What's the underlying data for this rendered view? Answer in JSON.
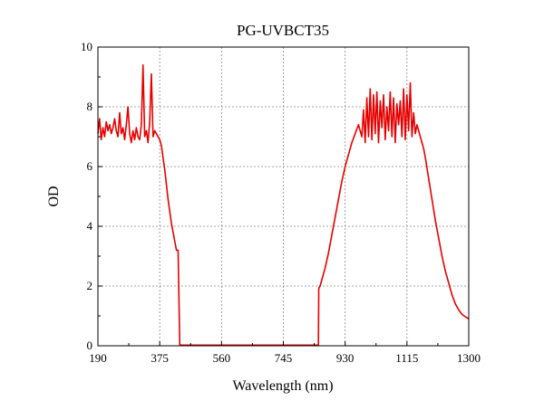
{
  "chart_data": {
    "type": "line",
    "title": "PG-UVBCT35",
    "xlabel": "Wavelength (nm)",
    "ylabel": "OD",
    "xlim": [
      190,
      1300
    ],
    "ylim": [
      0,
      10
    ],
    "x_ticks": [
      "190",
      "375",
      "560",
      "745",
      "930",
      "1115",
      "1300"
    ],
    "y_ticks": [
      "0",
      "2",
      "4",
      "6",
      "8",
      "10"
    ],
    "grid": true,
    "legend": "none",
    "series": [
      {
        "color": "#e60000",
        "x": [
          190,
          195,
          200,
          205,
          210,
          215,
          220,
          225,
          230,
          235,
          240,
          245,
          250,
          255,
          260,
          265,
          270,
          275,
          280,
          285,
          290,
          295,
          300,
          305,
          310,
          315,
          320,
          325,
          330,
          335,
          340,
          345,
          350,
          355,
          360,
          365,
          370,
          375,
          380,
          385,
          390,
          395,
          400,
          405,
          410,
          415,
          420,
          425,
          430,
          435,
          440,
          445,
          447,
          448,
          450,
          460,
          480,
          500,
          520,
          540,
          560,
          580,
          600,
          620,
          640,
          660,
          680,
          700,
          720,
          740,
          760,
          780,
          800,
          820,
          840,
          850,
          851,
          852,
          855,
          860,
          870,
          880,
          890,
          900,
          910,
          920,
          930,
          940,
          950,
          960,
          970,
          980,
          985,
          990,
          995,
          1000,
          1005,
          1010,
          1015,
          1020,
          1025,
          1030,
          1035,
          1040,
          1045,
          1050,
          1055,
          1060,
          1065,
          1070,
          1075,
          1080,
          1085,
          1090,
          1095,
          1100,
          1105,
          1110,
          1115,
          1120,
          1125,
          1130,
          1135,
          1140,
          1145,
          1150,
          1155,
          1160,
          1165,
          1170,
          1180,
          1190,
          1200,
          1210,
          1220,
          1230,
          1240,
          1250,
          1260,
          1270,
          1280,
          1290,
          1300
        ],
        "y": [
          7.1,
          7.6,
          6.9,
          7.3,
          7.0,
          7.5,
          7.2,
          7.4,
          7.1,
          7.3,
          7.6,
          7.2,
          7.0,
          7.8,
          7.1,
          7.3,
          6.9,
          7.4,
          8.0,
          7.1,
          6.8,
          7.2,
          6.9,
          7.3,
          7.0,
          6.9,
          7.4,
          9.4,
          7.0,
          7.2,
          6.8,
          7.5,
          9.1,
          7.0,
          7.2,
          7.1,
          7.0,
          6.9,
          6.7,
          6.3,
          5.9,
          5.4,
          4.9,
          4.5,
          4.1,
          3.8,
          3.5,
          3.2,
          3.2,
          0.03,
          0.02,
          0.02,
          0.02,
          0.02,
          0.02,
          0.02,
          0.02,
          0.02,
          0.02,
          0.02,
          0.02,
          0.02,
          0.02,
          0.02,
          0.02,
          0.02,
          0.02,
          0.02,
          0.02,
          0.02,
          0.02,
          0.02,
          0.02,
          0.02,
          0.02,
          0.02,
          1.9,
          1.95,
          2.0,
          2.2,
          2.6,
          3.1,
          3.7,
          4.3,
          4.9,
          5.5,
          6.0,
          6.4,
          6.8,
          7.1,
          7.4,
          7.0,
          7.9,
          6.8,
          8.3,
          7.0,
          8.6,
          6.9,
          8.4,
          7.1,
          8.5,
          6.8,
          8.2,
          7.3,
          8.4,
          6.9,
          8.0,
          7.2,
          8.5,
          7.0,
          8.3,
          6.8,
          8.1,
          7.4,
          8.2,
          7.0,
          8.6,
          6.9,
          8.4,
          7.2,
          8.8,
          7.0,
          7.8,
          7.1,
          7.4,
          7.2,
          7.0,
          6.8,
          6.6,
          6.3,
          5.6,
          4.9,
          4.2,
          3.6,
          3.0,
          2.5,
          2.1,
          1.7,
          1.4,
          1.2,
          1.05,
          0.97,
          0.9
        ]
      }
    ]
  }
}
